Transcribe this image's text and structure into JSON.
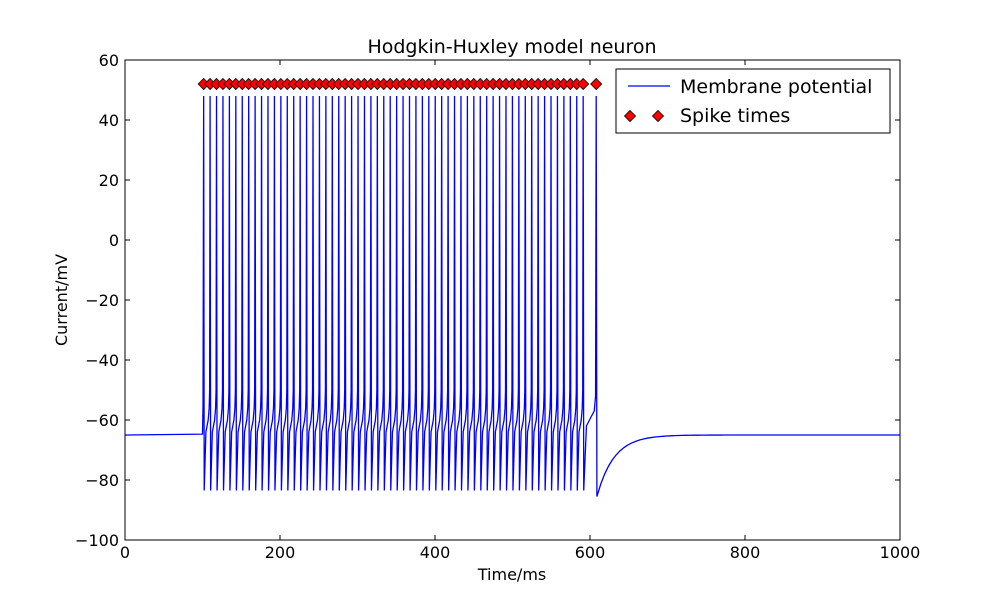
{
  "chart_data": {
    "type": "line",
    "title": "Hodgkin-Huxley model neuron",
    "xlabel": "Time/ms",
    "ylabel": "Current/mV",
    "xlim": [
      0,
      1000
    ],
    "ylim": [
      -100,
      60
    ],
    "xticks": [
      0,
      200,
      400,
      600,
      800,
      1000
    ],
    "xtick_labels": [
      "0",
      "200",
      "400",
      "600",
      "800",
      "1000"
    ],
    "yticks": [
      -100,
      -80,
      -60,
      -40,
      -20,
      0,
      20,
      40,
      60
    ],
    "ytick_labels": [
      "−100",
      "−80",
      "−60",
      "−40",
      "−20",
      "0",
      "20",
      "40",
      "60"
    ],
    "grid": false,
    "legend": {
      "position": "top-right"
    },
    "series": [
      {
        "name": "Membrane potential",
        "style": "line",
        "color": "#0000ff",
        "resting_potential": -65,
        "spike_peak": 48,
        "spike_trough": -83.5,
        "stimulus_on": 100,
        "stimulus_off": 610,
        "post_stimulus_trough": -85.5,
        "spike_times": [
          101.5,
          109.8,
          118.1,
          126.4,
          134.7,
          143.0,
          151.3,
          159.6,
          167.9,
          176.2,
          184.5,
          192.8,
          201.1,
          209.4,
          217.7,
          226.0,
          234.3,
          242.6,
          250.9,
          259.2,
          267.5,
          275.8,
          284.1,
          292.4,
          300.7,
          309.0,
          317.3,
          325.6,
          333.9,
          342.2,
          350.5,
          358.8,
          367.1,
          375.4,
          383.7,
          392.0,
          400.3,
          408.6,
          416.9,
          425.2,
          433.5,
          441.8,
          450.1,
          458.4,
          466.7,
          475.0,
          483.3,
          491.6,
          499.9,
          508.2,
          516.5,
          524.8,
          533.1,
          541.4,
          549.7,
          558.0,
          566.3,
          574.6,
          582.9,
          591.2,
          608.0
        ]
      },
      {
        "name": "Spike times",
        "style": "marker",
        "marker": "diamond",
        "color": "#ff0000",
        "y_value": 52,
        "x": [
          101.5,
          109.8,
          118.1,
          126.4,
          134.7,
          143.0,
          151.3,
          159.6,
          167.9,
          176.2,
          184.5,
          192.8,
          201.1,
          209.4,
          217.7,
          226.0,
          234.3,
          242.6,
          250.9,
          259.2,
          267.5,
          275.8,
          284.1,
          292.4,
          300.7,
          309.0,
          317.3,
          325.6,
          333.9,
          342.2,
          350.5,
          358.8,
          367.1,
          375.4,
          383.7,
          392.0,
          400.3,
          408.6,
          416.9,
          425.2,
          433.5,
          441.8,
          450.1,
          458.4,
          466.7,
          475.0,
          483.3,
          491.6,
          499.9,
          508.2,
          516.5,
          524.8,
          533.1,
          541.4,
          549.7,
          558.0,
          566.3,
          574.6,
          582.9,
          591.2,
          608.0
        ]
      }
    ]
  }
}
